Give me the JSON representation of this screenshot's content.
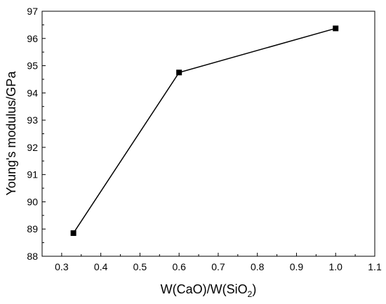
{
  "chart_data": {
    "type": "line",
    "title": "",
    "xlabel": "W(CaO)/W(SiO2)",
    "xlabel_parts": {
      "main": "W(CaO)/W(SiO",
      "sub": "2",
      "end": ")"
    },
    "ylabel": "Young's modulus/GPa",
    "xlim": [
      0.25,
      1.1
    ],
    "ylim": [
      88,
      97
    ],
    "x_ticks": [
      0.3,
      0.4,
      0.5,
      0.6,
      0.7,
      0.8,
      0.9,
      1.0,
      1.1
    ],
    "x_tick_labels": [
      "0.3",
      "0.4",
      "0.5",
      "0.6",
      "0.7",
      "0.8",
      "0.9",
      "1.0",
      "1.1"
    ],
    "y_ticks": [
      88,
      89,
      90,
      91,
      92,
      93,
      94,
      95,
      96,
      97
    ],
    "y_tick_labels": [
      "88",
      "89",
      "90",
      "91",
      "92",
      "93",
      "94",
      "95",
      "96",
      "97"
    ],
    "grid": false,
    "legend": "none",
    "series": [
      {
        "marker": "square",
        "color": "#000000",
        "x": [
          0.33,
          0.6,
          1.0
        ],
        "y": [
          88.85,
          94.75,
          96.37
        ]
      }
    ]
  }
}
